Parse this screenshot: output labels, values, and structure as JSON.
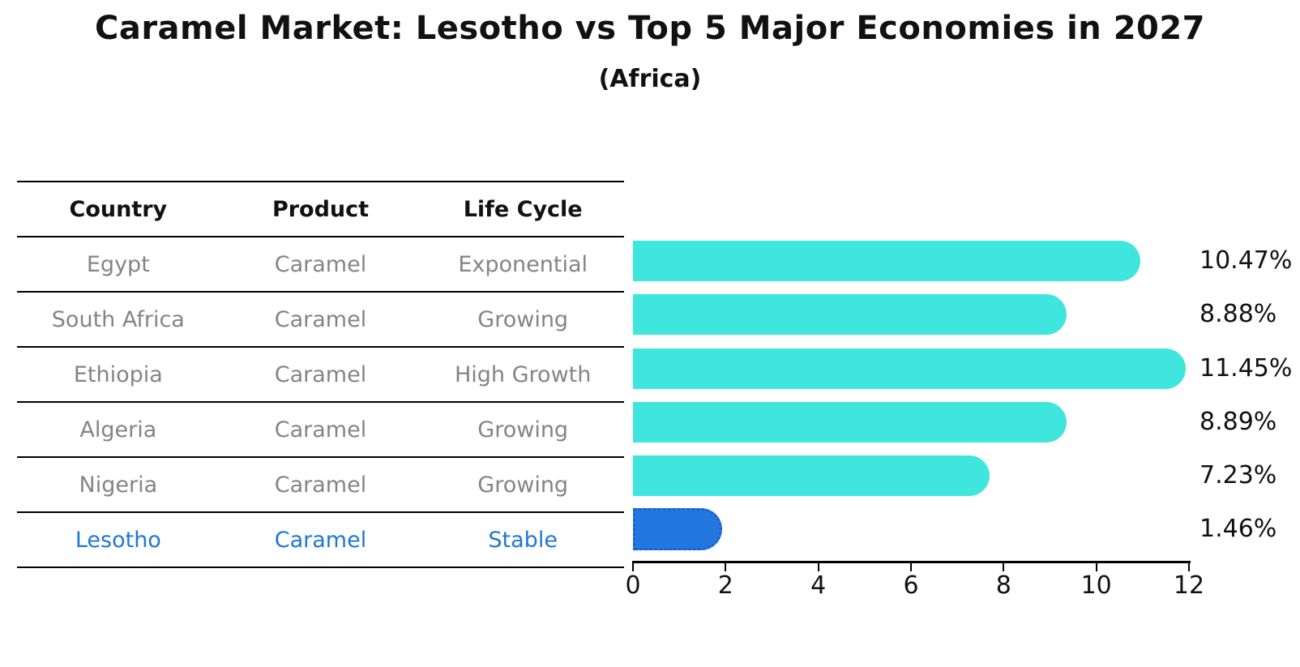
{
  "title": "Caramel Market: Lesotho vs Top 5 Major Economies in 2027",
  "subtitle": "(Africa)",
  "table": {
    "headers": [
      "Country",
      "Product",
      "Life Cycle"
    ],
    "rows": [
      {
        "country": "Egypt",
        "product": "Caramel",
        "life_cycle": "Exponential",
        "highlight": false
      },
      {
        "country": "South Africa",
        "product": "Caramel",
        "life_cycle": "Growing",
        "highlight": false
      },
      {
        "country": "Ethiopia",
        "product": "Caramel",
        "life_cycle": "High Growth",
        "highlight": false
      },
      {
        "country": "Algeria",
        "product": "Caramel",
        "life_cycle": "Growing",
        "highlight": false
      },
      {
        "country": "Nigeria",
        "product": "Caramel",
        "life_cycle": "Growing",
        "highlight": false
      },
      {
        "country": "Lesotho",
        "product": "Caramel",
        "life_cycle": "Stable",
        "highlight": true
      }
    ]
  },
  "chart_data": {
    "type": "bar",
    "orientation": "horizontal",
    "title": "Caramel Market: Lesotho vs Top 5 Major Economies in 2027 (Africa)",
    "categories": [
      "Egypt",
      "South Africa",
      "Ethiopia",
      "Algeria",
      "Nigeria",
      "Lesotho"
    ],
    "values": [
      10.47,
      8.88,
      11.45,
      8.89,
      7.23,
      1.46
    ],
    "value_labels": [
      "10.47%",
      "8.88%",
      "11.45%",
      "8.89%",
      "7.23%",
      "1.46%"
    ],
    "x_ticks": [
      0,
      2,
      4,
      6,
      8,
      10,
      12
    ],
    "xlim": [
      0,
      12
    ],
    "xlabel": "",
    "ylabel": "",
    "grid": false,
    "legend": false,
    "highlight_index": 5
  },
  "colors": {
    "bar": "#3EE6DD",
    "highlight_bar": "#2577E0",
    "highlight_border": "#1A5FD0",
    "highlight_text": "#1F77D4",
    "row_text": "#848484",
    "axis": "#000000"
  }
}
